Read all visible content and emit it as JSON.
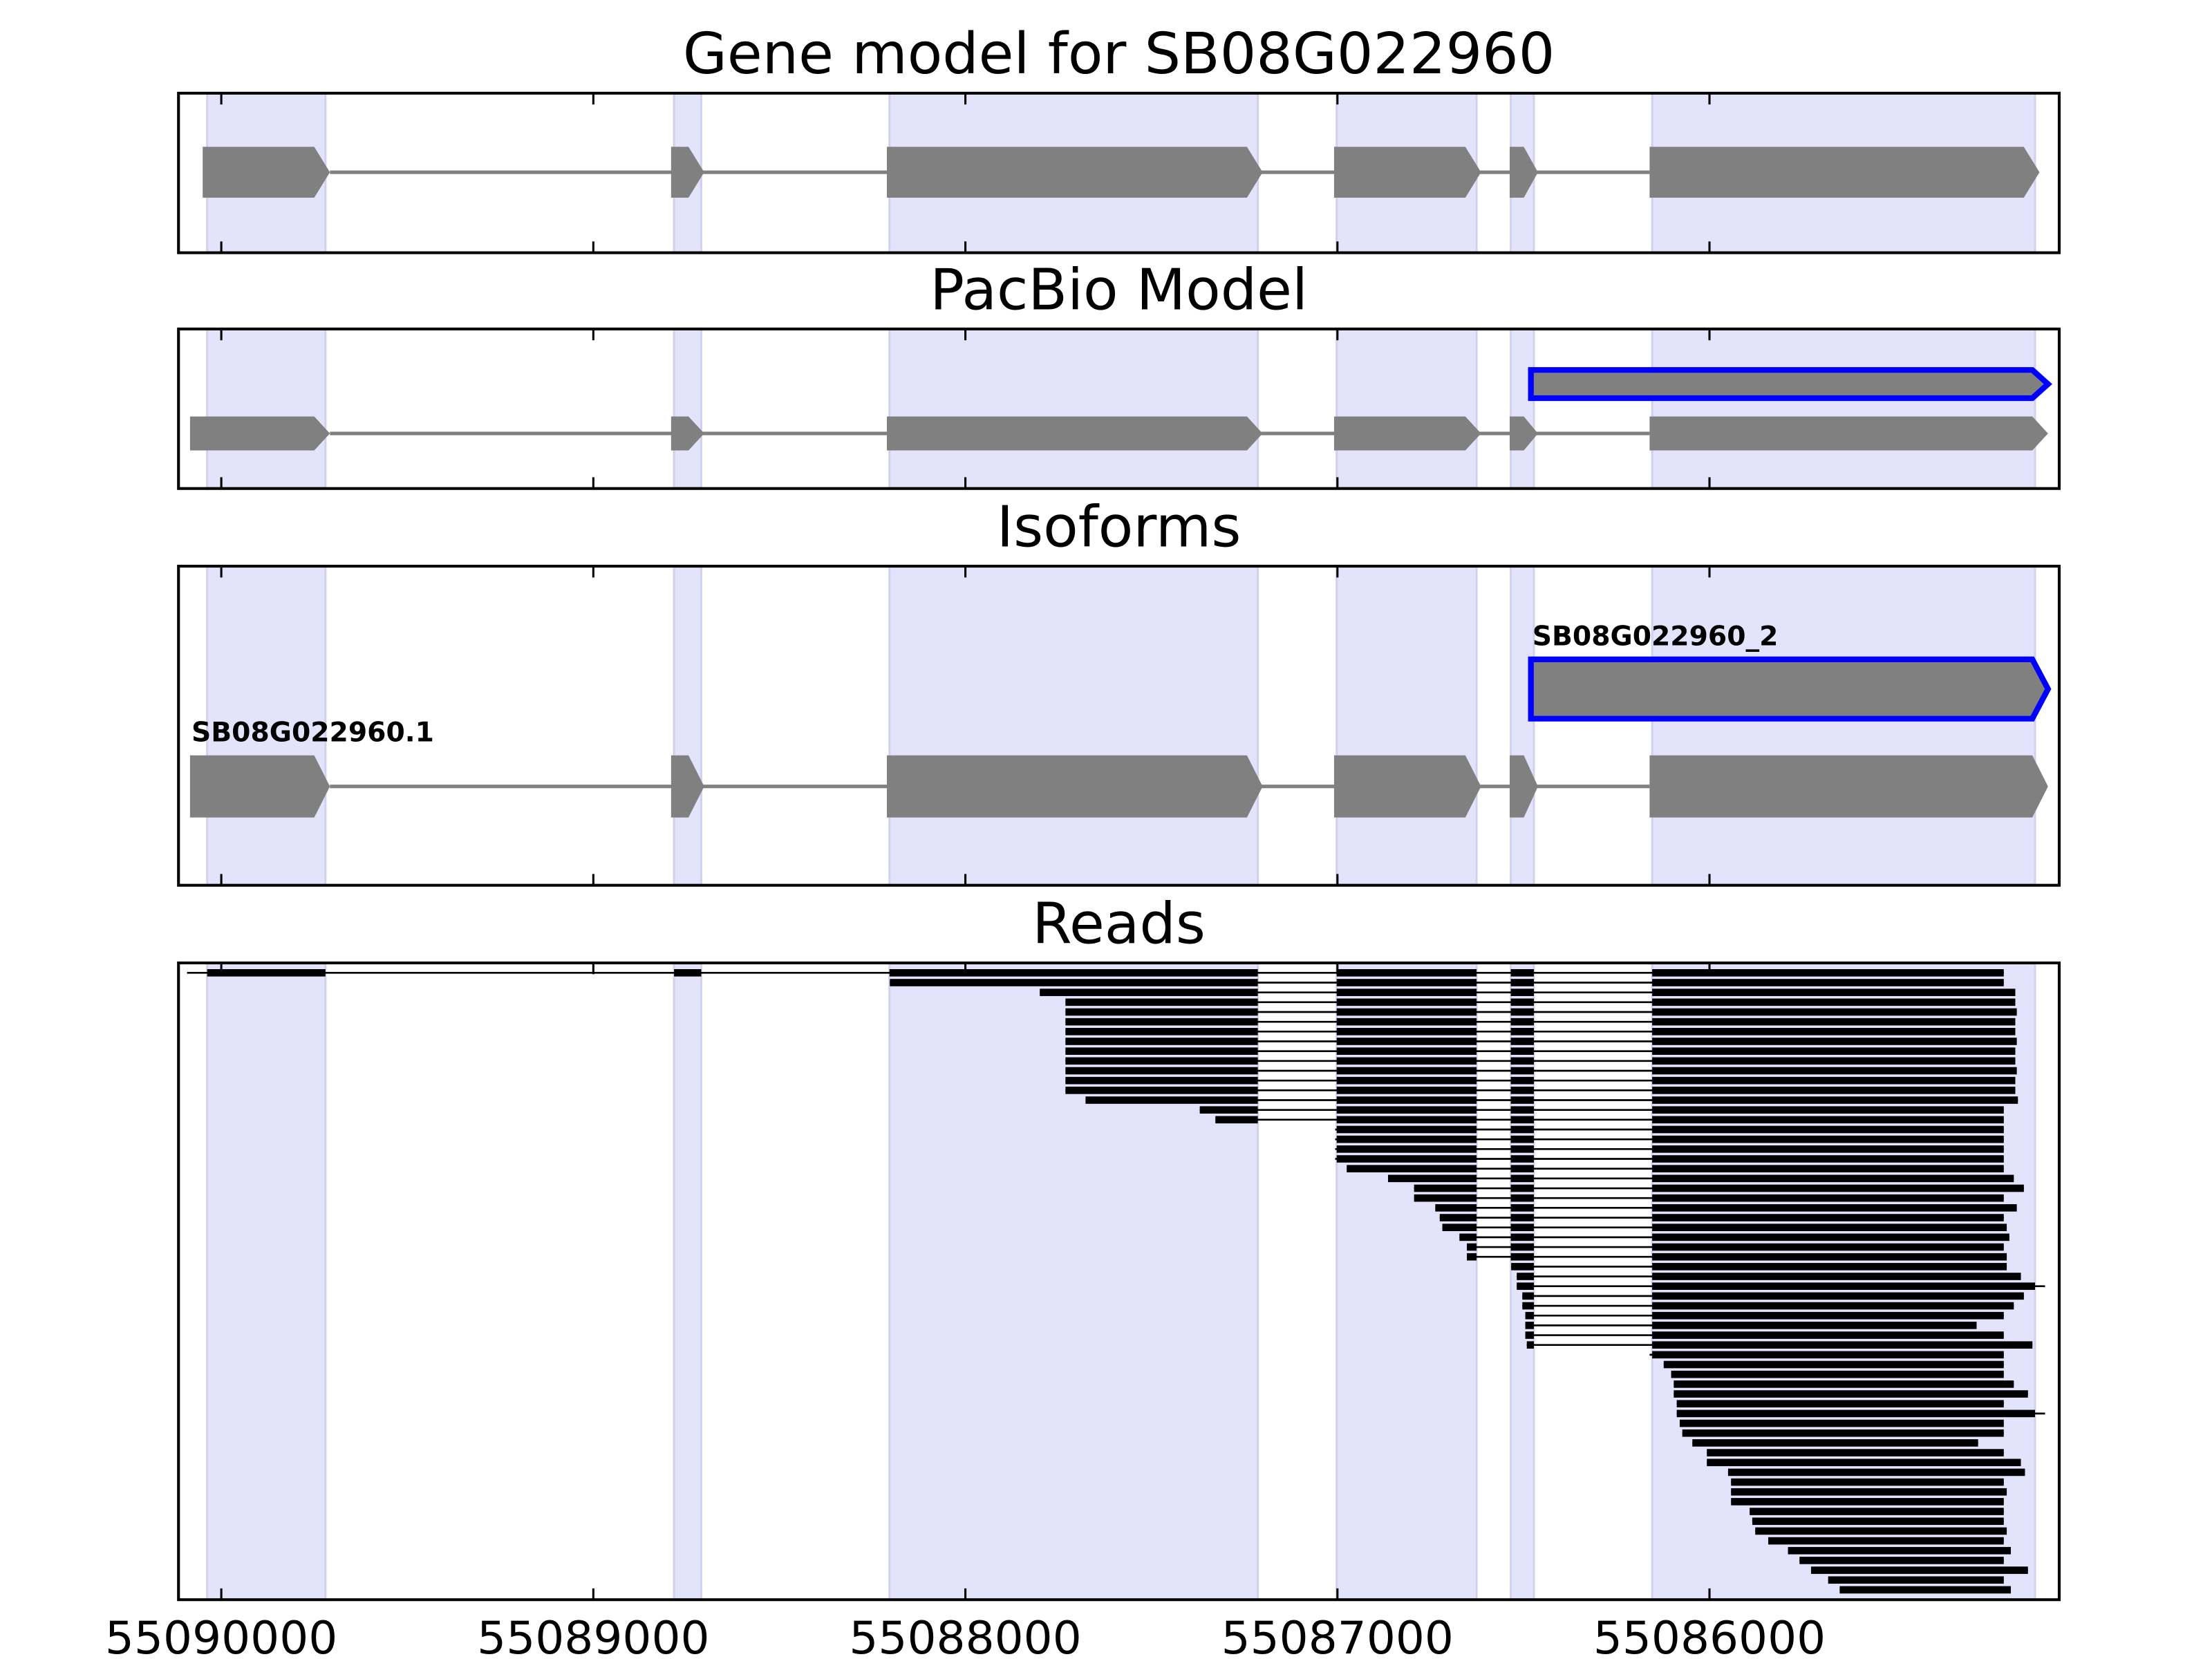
{
  "chart_data": [
    {
      "type": "gene-track",
      "title": "Gene model for SB08G022960",
      "xlim": [
        55090115,
        55085060
      ],
      "xticks": [
        55090000,
        55089000,
        55088000,
        55087000,
        55086000
      ],
      "highlight_regions": [
        [
          55090038,
          55089720
        ],
        [
          55088783,
          55088710
        ],
        [
          55088204,
          55087214
        ],
        [
          55087002,
          55086626
        ],
        [
          55086534,
          55086472
        ],
        [
          55086154,
          55085125
        ]
      ],
      "transcripts": [
        {
          "color": "#808080",
          "exons": [
            [
              55090050,
              55089708
            ],
            [
              55088791,
              55088702
            ],
            [
              55088211,
              55087201
            ],
            [
              55087009,
              55086614
            ],
            [
              55086537,
              55086461
            ],
            [
              55086161,
              55085113
            ]
          ]
        }
      ]
    },
    {
      "type": "gene-track",
      "title": "PacBio Model",
      "xlim": [
        55090115,
        55085060
      ],
      "xticks": [
        55090000,
        55089000,
        55088000,
        55087000,
        55086000
      ],
      "highlight_regions": [
        [
          55090038,
          55089720
        ],
        [
          55088783,
          55088710
        ],
        [
          55088204,
          55087214
        ],
        [
          55087002,
          55086626
        ],
        [
          55086534,
          55086472
        ],
        [
          55086154,
          55085125
        ]
      ],
      "transcripts": [
        {
          "color": "#808080",
          "edgecolor": "#0000ff",
          "exons": [
            [
              55086480,
              55085090
            ]
          ]
        },
        {
          "color": "#808080",
          "exons": [
            [
              55090084,
              55089708
            ],
            [
              55088791,
              55088702
            ],
            [
              55088211,
              55087201
            ],
            [
              55087009,
              55086614
            ],
            [
              55086537,
              55086461
            ],
            [
              55086161,
              55085090
            ]
          ]
        }
      ]
    },
    {
      "type": "gene-track",
      "title": "Isoforms",
      "xlim": [
        55090115,
        55085060
      ],
      "xticks": [
        55090000,
        55089000,
        55088000,
        55087000,
        55086000
      ],
      "highlight_regions": [
        [
          55090038,
          55089720
        ],
        [
          55088783,
          55088710
        ],
        [
          55088204,
          55087214
        ],
        [
          55087002,
          55086626
        ],
        [
          55086534,
          55086472
        ],
        [
          55086154,
          55085125
        ]
      ],
      "transcripts": [
        {
          "label": "SB08G022960_2",
          "color": "#808080",
          "edgecolor": "#0000ff",
          "exons": [
            [
              55086480,
              55085090
            ]
          ]
        },
        {
          "label": "SB08G022960.1",
          "color": "#808080",
          "exons": [
            [
              55090084,
              55089708
            ],
            [
              55088791,
              55088702
            ],
            [
              55088211,
              55087201
            ],
            [
              55087009,
              55086614
            ],
            [
              55086537,
              55086461
            ],
            [
              55086161,
              55085090
            ]
          ]
        }
      ]
    },
    {
      "type": "reads",
      "title": "Reads",
      "xlim": [
        55090115,
        55085060
      ],
      "xticks": [
        55090000,
        55089000,
        55088000,
        55087000,
        55086000
      ],
      "highlight_regions": [
        [
          55090038,
          55089720
        ],
        [
          55088783,
          55088710
        ],
        [
          55088204,
          55087214
        ],
        [
          55087002,
          55086626
        ],
        [
          55086534,
          55086472
        ],
        [
          55086154,
          55085125
        ]
      ],
      "color": "#000000",
      "reads": [
        [
          55090092,
          55085209
        ],
        [
          55088203,
          55085209
        ],
        [
          55087800,
          55085178
        ],
        [
          55087731,
          55085178
        ],
        [
          55087731,
          55085174
        ],
        [
          55087731,
          55085178
        ],
        [
          55087731,
          55085178
        ],
        [
          55087731,
          55085174
        ],
        [
          55087731,
          55085178
        ],
        [
          55087731,
          55085178
        ],
        [
          55087731,
          55085174
        ],
        [
          55087731,
          55085178
        ],
        [
          55087731,
          55085178
        ],
        [
          55087677,
          55085171
        ],
        [
          55087370,
          55085209
        ],
        [
          55087328,
          55085209
        ],
        [
          55087006,
          55085209
        ],
        [
          55087006,
          55085209
        ],
        [
          55087006,
          55085209
        ],
        [
          55087006,
          55085209
        ],
        [
          55086975,
          55085209
        ],
        [
          55086864,
          55085182
        ],
        [
          55086794,
          55085155
        ],
        [
          55086794,
          55085209
        ],
        [
          55086737,
          55085174
        ],
        [
          55086725,
          55085209
        ],
        [
          55086718,
          55085201
        ],
        [
          55086672,
          55085194
        ],
        [
          55086652,
          55085209
        ],
        [
          55086652,
          55085201
        ],
        [
          55086533,
          55085201
        ],
        [
          55086518,
          55085163
        ],
        [
          55086518,
          55085098
        ],
        [
          55086503,
          55085155
        ],
        [
          55086503,
          55085182
        ],
        [
          55086495,
          55085209
        ],
        [
          55086495,
          55085282
        ],
        [
          55086495,
          55085209
        ],
        [
          55086491,
          55085132
        ],
        [
          55086161,
          55085209
        ],
        [
          55086123,
          55085209
        ],
        [
          55086103,
          55085209
        ],
        [
          55086096,
          55085182
        ],
        [
          55086096,
          55085144
        ],
        [
          55086088,
          55085209
        ],
        [
          55086088,
          55085098
        ],
        [
          55086080,
          55085209
        ],
        [
          55086073,
          55085209
        ],
        [
          55086046,
          55085278
        ],
        [
          55086007,
          55085209
        ],
        [
          55086007,
          55085163
        ],
        [
          55085950,
          55085152
        ],
        [
          55085942,
          55085209
        ],
        [
          55085942,
          55085201
        ],
        [
          55085942,
          55085209
        ],
        [
          55085892,
          55085209
        ],
        [
          55085885,
          55085209
        ],
        [
          55085877,
          55085201
        ],
        [
          55085842,
          55085209
        ],
        [
          55085789,
          55085190
        ],
        [
          55085758,
          55085209
        ],
        [
          55085727,
          55085144
        ],
        [
          55085681,
          55085209
        ],
        [
          55085650,
          55085190
        ]
      ]
    }
  ]
}
